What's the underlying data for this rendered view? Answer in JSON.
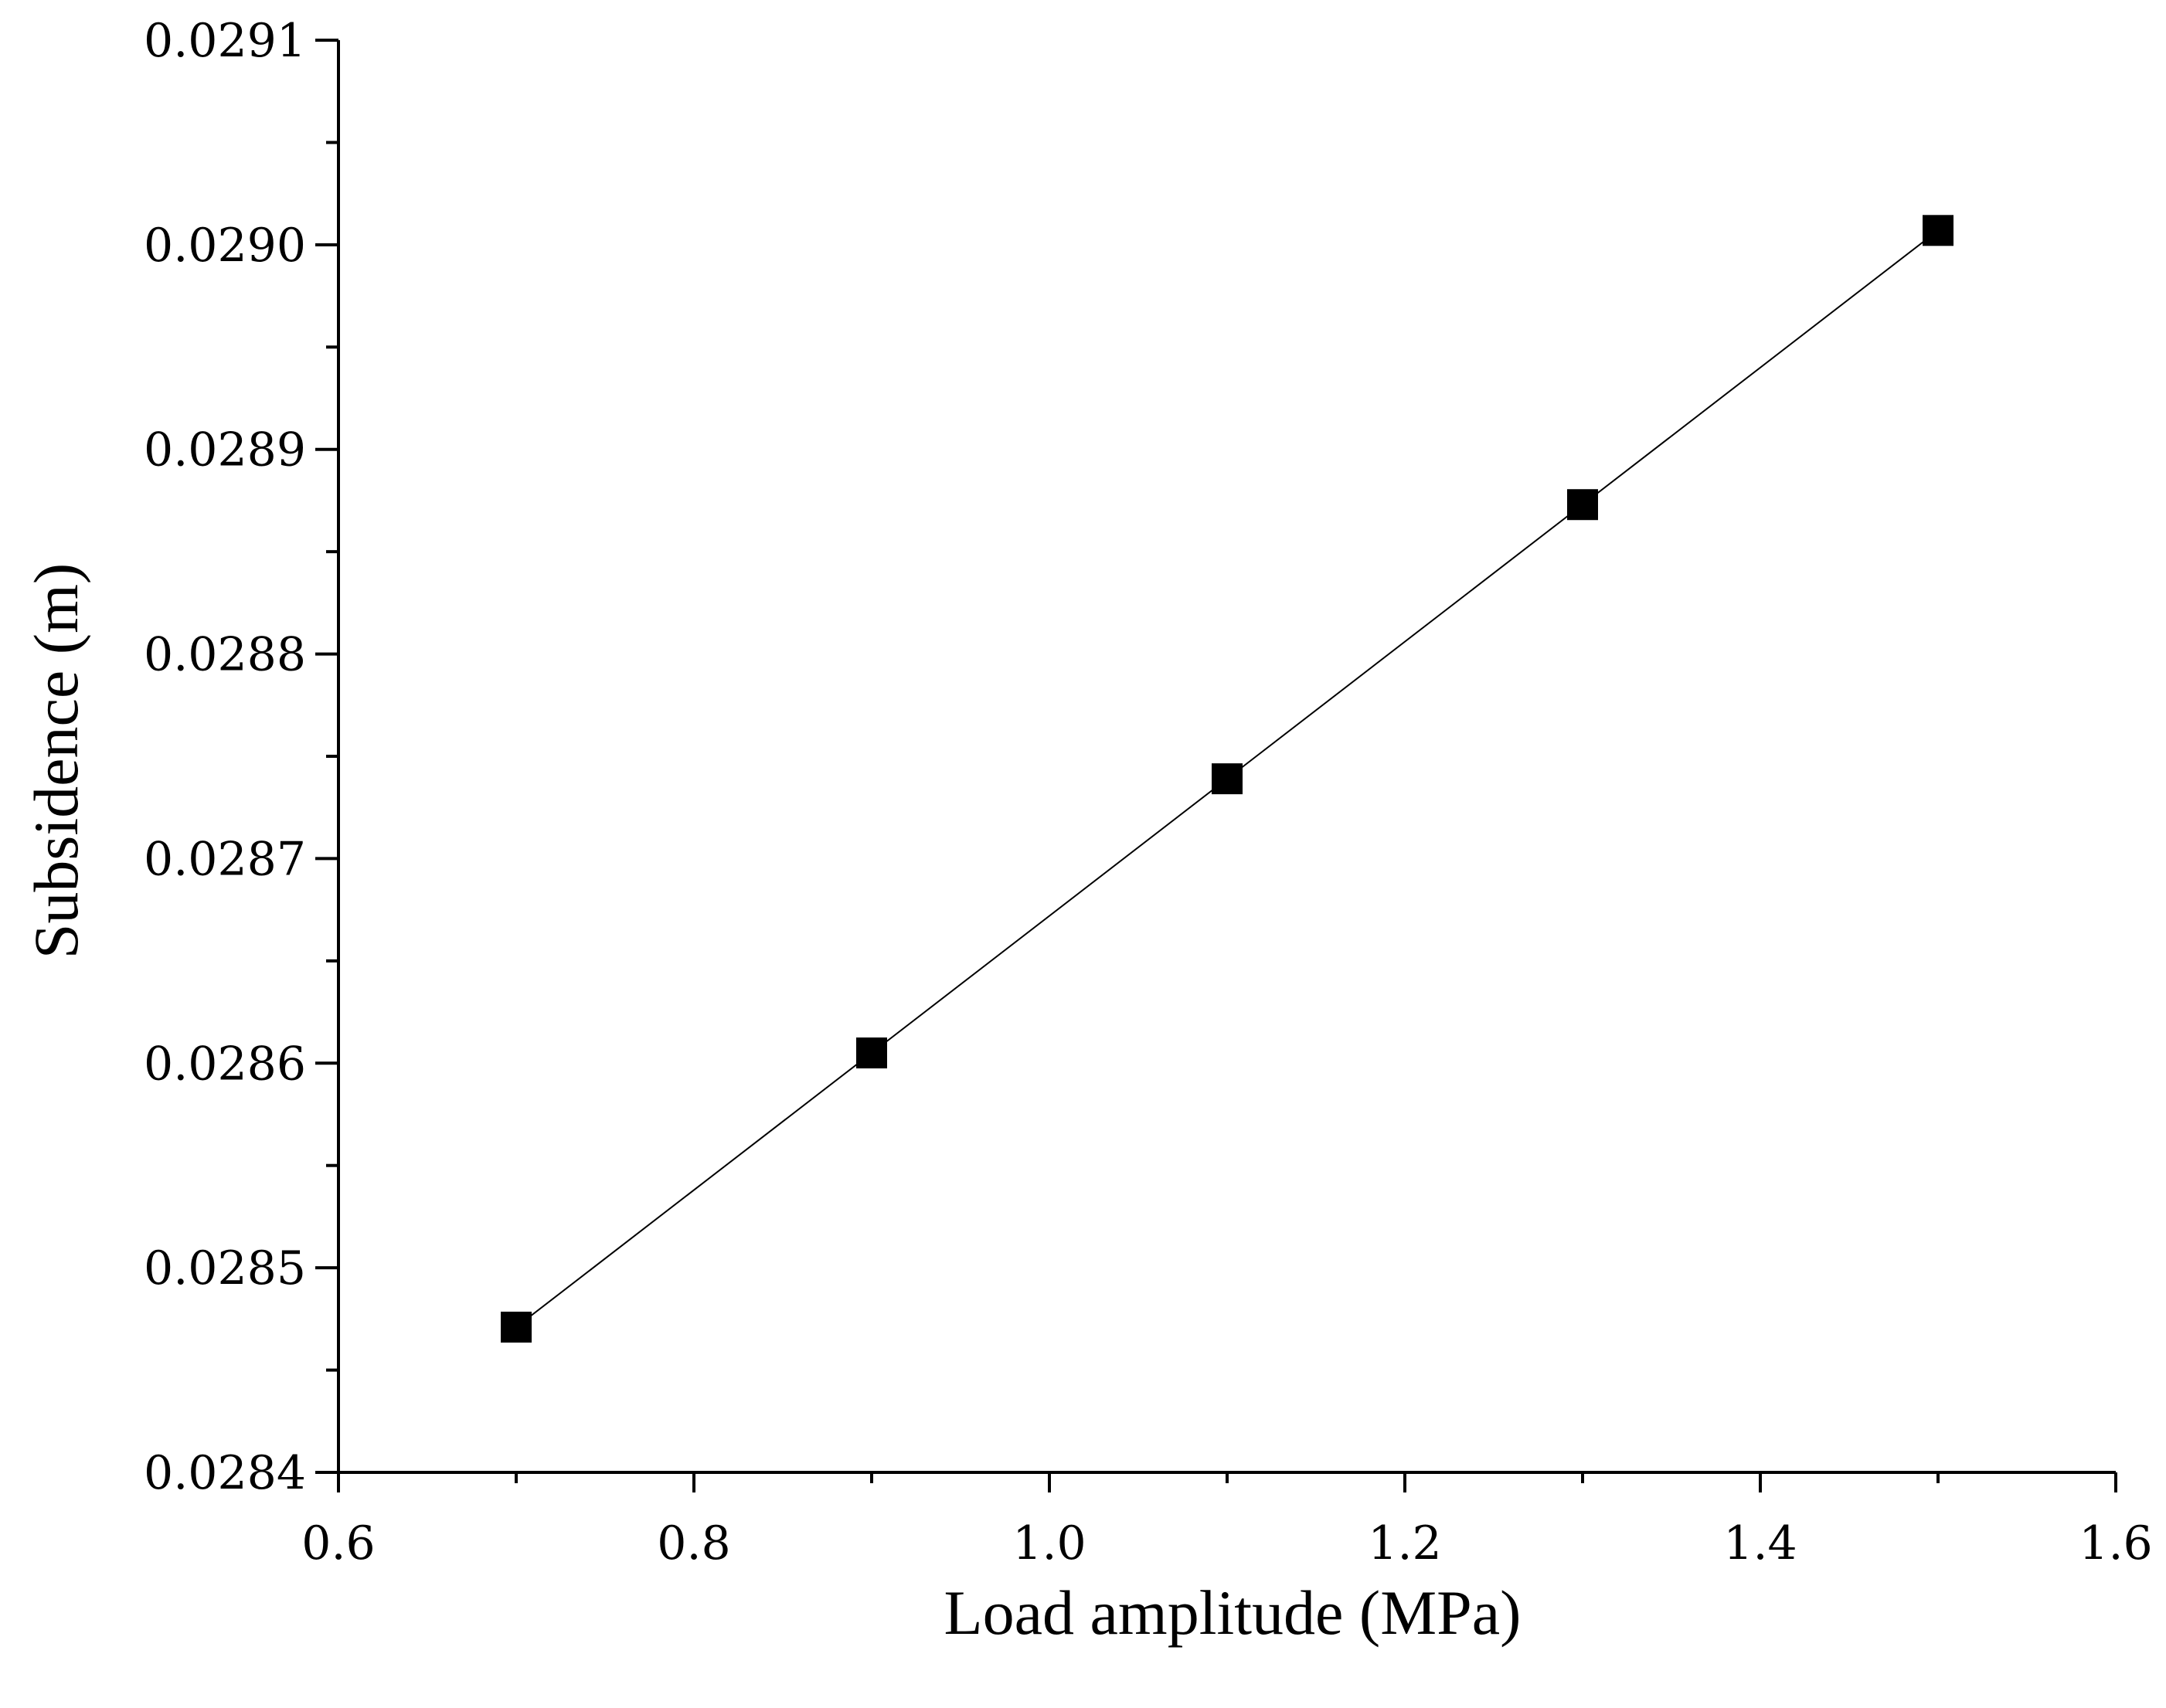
{
  "chart_data": {
    "type": "line",
    "xlabel": "Load amplitude (MPa)",
    "ylabel": "Subsidence (m)",
    "xlim": [
      0.6,
      1.6
    ],
    "ylim": [
      0.0284,
      0.0291
    ],
    "x_ticks": [
      "0.6",
      "0.8",
      "1.0",
      "1.2",
      "1.4",
      "1.6"
    ],
    "y_ticks": [
      "0.0284",
      "0.0285",
      "0.0286",
      "0.0287",
      "0.0288",
      "0.0289",
      "0.0290",
      "0.0291"
    ],
    "grid": false,
    "marker": "square",
    "series": [
      {
        "x": [
          0.7,
          0.9,
          1.1,
          1.3,
          1.5
        ],
        "y": [
          0.028471,
          0.028605,
          0.028739,
          0.028873,
          0.029007
        ]
      }
    ],
    "colors": {
      "line": "#000000",
      "marker": "#000000",
      "axis": "#000000"
    }
  }
}
